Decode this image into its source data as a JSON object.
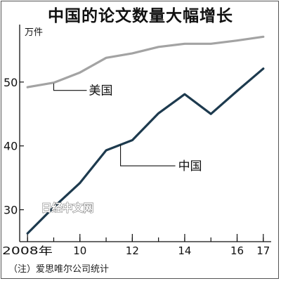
{
  "title": "中国的论文数量大幅增长",
  "note": "（注）爱思唯尔公司统计",
  "watermark": "日经中文网",
  "chart_data": {
    "type": "line",
    "ylabel": "万件",
    "x": [
      2008,
      2009,
      2010,
      2011,
      2012,
      2013,
      2014,
      2015,
      2016,
      2017
    ],
    "xticks": [
      2008,
      2010,
      2012,
      2014,
      2016,
      2017
    ],
    "xtick_labels": [
      "2008年",
      "10",
      "12",
      "14",
      "16",
      "17"
    ],
    "yticks": [
      30,
      40,
      50
    ],
    "ylim": [
      25,
      59
    ],
    "xlim": [
      2007.7,
      2017.3
    ],
    "grid": false,
    "series": [
      {
        "name": "美国",
        "color": "#a3a3a3",
        "values": [
          49.2,
          49.9,
          51.5,
          53.8,
          54.5,
          55.5,
          56.0,
          56.0,
          56.5,
          57.1
        ]
      },
      {
        "name": "中国",
        "color": "#1d3a4e",
        "values": [
          26.3,
          30.4,
          34.2,
          39.3,
          40.9,
          45.1,
          48.1,
          45.0,
          48.6,
          52.1
        ]
      }
    ]
  }
}
